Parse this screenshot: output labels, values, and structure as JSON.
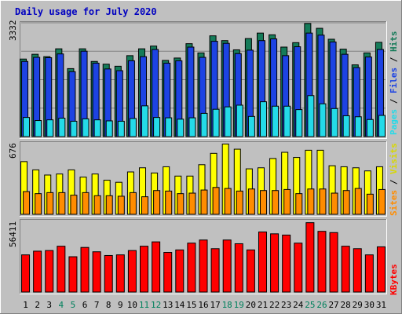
{
  "title": "Daily usage for July 2020",
  "colors": {
    "background": "#c0c0c0",
    "panel": "#c0c0c0",
    "title": "#0000c0",
    "hits": "#157b59",
    "files": "#1d43e3",
    "pages": "#24dae8",
    "visits": "#ffff00",
    "sites": "#ff8c00",
    "kbytes": "#ff0000",
    "weekend_label": "#00805c",
    "weekday_label": "#000000"
  },
  "chart_data": [
    {
      "type": "bar",
      "name": "hits-files-pages",
      "axis_max_label": "3332",
      "ylim": [
        0,
        3332
      ],
      "categories": [
        "1",
        "2",
        "3",
        "4",
        "5",
        "6",
        "7",
        "8",
        "9",
        "10",
        "11",
        "12",
        "13",
        "14",
        "15",
        "16",
        "17",
        "18",
        "19",
        "20",
        "21",
        "22",
        "23",
        "24",
        "25",
        "26",
        "27",
        "28",
        "29",
        "30",
        "31"
      ],
      "weekend_days": [
        "4",
        "5",
        "11",
        "12",
        "18",
        "19",
        "25",
        "26"
      ],
      "series": [
        {
          "name": "Hits",
          "values": [
            2270,
            2410,
            2340,
            2570,
            1990,
            2570,
            2200,
            2120,
            2060,
            2370,
            2570,
            2650,
            2230,
            2300,
            2720,
            2450,
            2950,
            2810,
            2540,
            2870,
            3030,
            2980,
            2620,
            2750,
            3310,
            3170,
            2850,
            2560,
            2100,
            2450,
            2760
          ]
        },
        {
          "name": "Files",
          "values": [
            2200,
            2320,
            2310,
            2420,
            1900,
            2500,
            2150,
            1980,
            1930,
            2220,
            2340,
            2550,
            2150,
            2220,
            2620,
            2320,
            2790,
            2730,
            2430,
            2530,
            2810,
            2860,
            2370,
            2630,
            3030,
            2970,
            2770,
            2410,
            2020,
            2330,
            2550
          ]
        },
        {
          "name": "Pages",
          "values": [
            560,
            470,
            490,
            540,
            450,
            520,
            490,
            460,
            450,
            530,
            900,
            560,
            550,
            510,
            550,
            680,
            800,
            870,
            920,
            590,
            1020,
            890,
            890,
            790,
            1200,
            960,
            820,
            610,
            580,
            500,
            620
          ]
        }
      ]
    },
    {
      "type": "bar",
      "name": "visits-sites",
      "axis_max_label": "676",
      "ylim": [
        0,
        676
      ],
      "categories": [
        "1",
        "2",
        "3",
        "4",
        "5",
        "6",
        "7",
        "8",
        "9",
        "10",
        "11",
        "12",
        "13",
        "14",
        "15",
        "16",
        "17",
        "18",
        "19",
        "20",
        "21",
        "22",
        "23",
        "24",
        "25",
        "26",
        "27",
        "28",
        "29",
        "30",
        "31"
      ],
      "series": [
        {
          "name": "Visits",
          "values": [
            510,
            430,
            380,
            390,
            430,
            360,
            390,
            330,
            310,
            410,
            450,
            400,
            460,
            370,
            370,
            480,
            590,
            680,
            630,
            440,
            450,
            540,
            600,
            550,
            620,
            620,
            470,
            460,
            450,
            420,
            460
          ]
        },
        {
          "name": "Sites",
          "values": [
            220,
            200,
            210,
            210,
            185,
            210,
            180,
            180,
            175,
            210,
            170,
            230,
            225,
            200,
            205,
            235,
            260,
            250,
            225,
            245,
            230,
            230,
            240,
            200,
            245,
            245,
            205,
            230,
            250,
            195,
            240
          ]
        }
      ]
    },
    {
      "type": "bar",
      "name": "kbytes",
      "axis_max_label": "56411",
      "ylim": [
        0,
        56411
      ],
      "categories": [
        "1",
        "2",
        "3",
        "4",
        "5",
        "6",
        "7",
        "8",
        "9",
        "10",
        "11",
        "12",
        "13",
        "14",
        "15",
        "16",
        "17",
        "18",
        "19",
        "20",
        "21",
        "22",
        "23",
        "24",
        "25",
        "26",
        "27",
        "28",
        "29",
        "30",
        "31"
      ],
      "series": [
        {
          "name": "KBytes",
          "values": [
            30000,
            33000,
            33500,
            37000,
            28500,
            36000,
            32500,
            29500,
            30000,
            33500,
            37000,
            40500,
            32000,
            34000,
            39500,
            42000,
            35000,
            42000,
            39000,
            34000,
            48500,
            47000,
            46000,
            39500,
            56000,
            49000,
            48000,
            37000,
            35000,
            30000,
            36500
          ]
        }
      ]
    }
  ],
  "side_labels": {
    "pages": "Pages",
    "files": "Files",
    "hits": "Hits",
    "sites": "Sites",
    "visits": "Visits",
    "kbytes": "KBytes",
    "separator": "/"
  }
}
